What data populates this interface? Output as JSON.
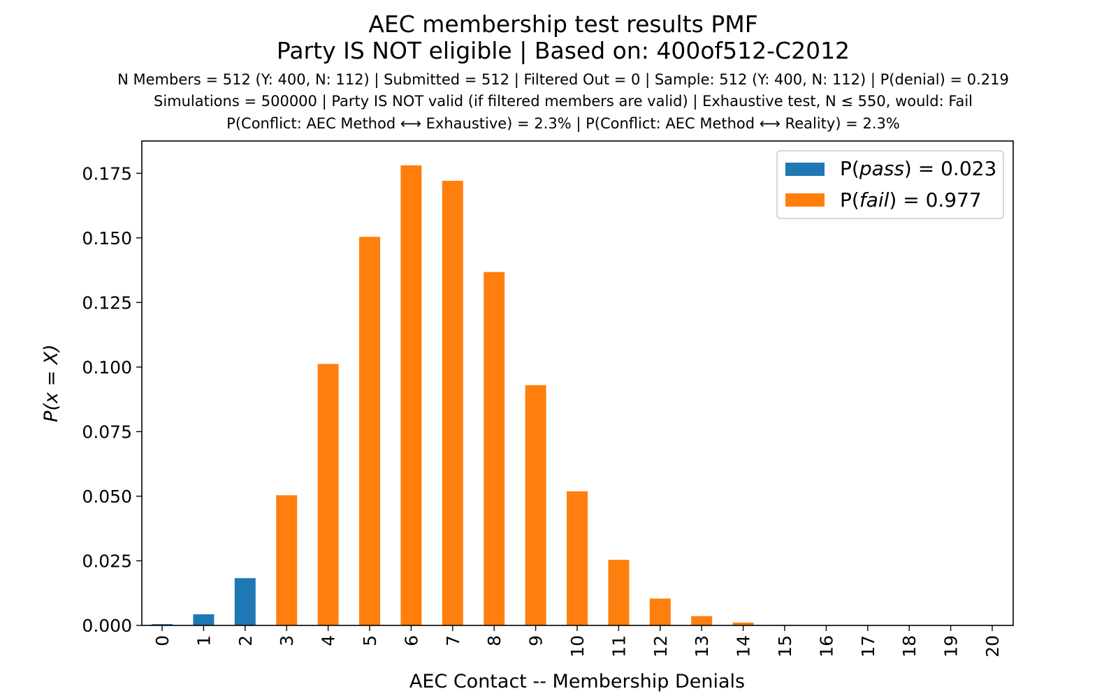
{
  "chart_data": {
    "type": "bar",
    "title": "AEC membership test results PMF",
    "subtitle": "Party IS NOT eligible | Based on: 400of512-C2012",
    "info_lines": [
      "N Members = 512 (Y: 400, N: 112) | Submitted = 512 | Filtered Out = 0 | Sample: 512 (Y: 400, N: 112) | P(denial) = 0.219",
      "Simulations = 500000 | Party IS NOT valid (if filtered members are valid) | Exhaustive test, N ≤ 550, would: Fail",
      "P(Conflict: AEC Method ⟷ Exhaustive) = 2.3% | P(Conflict: AEC Method ⟷ Reality) = 2.3%"
    ],
    "xlabel": "AEC Contact -- Membership Denials",
    "ylabel": "P(x = X)",
    "ylim": [
      0,
      0.1875
    ],
    "yticks": [
      "0.000",
      "0.025",
      "0.050",
      "0.075",
      "0.100",
      "0.125",
      "0.150",
      "0.175"
    ],
    "categories": [
      "0",
      "1",
      "2",
      "3",
      "4",
      "5",
      "6",
      "7",
      "8",
      "9",
      "10",
      "11",
      "12",
      "13",
      "14",
      "15",
      "16",
      "17",
      "18",
      "19",
      "20"
    ],
    "values": [
      0.0005,
      0.0043,
      0.0183,
      0.0504,
      0.1012,
      0.1504,
      0.1781,
      0.1721,
      0.1368,
      0.093,
      0.0519,
      0.0254,
      0.0104,
      0.0036,
      0.0011,
      0.0002,
      0.0001,
      0.0,
      0.0,
      0.0,
      0.0
    ],
    "pass_max_category": 2,
    "colors": {
      "pass": "#1f77b4",
      "fail": "#ff7f0e"
    },
    "legend": {
      "placement": "top-right",
      "entries": [
        {
          "var": "pass",
          "prefix": "P(",
          "suffix": ") = 0.023",
          "color": "#1f77b4"
        },
        {
          "var": "fail",
          "prefix": "P(",
          "suffix": ") = 0.977",
          "color": "#ff7f0e"
        }
      ]
    }
  }
}
